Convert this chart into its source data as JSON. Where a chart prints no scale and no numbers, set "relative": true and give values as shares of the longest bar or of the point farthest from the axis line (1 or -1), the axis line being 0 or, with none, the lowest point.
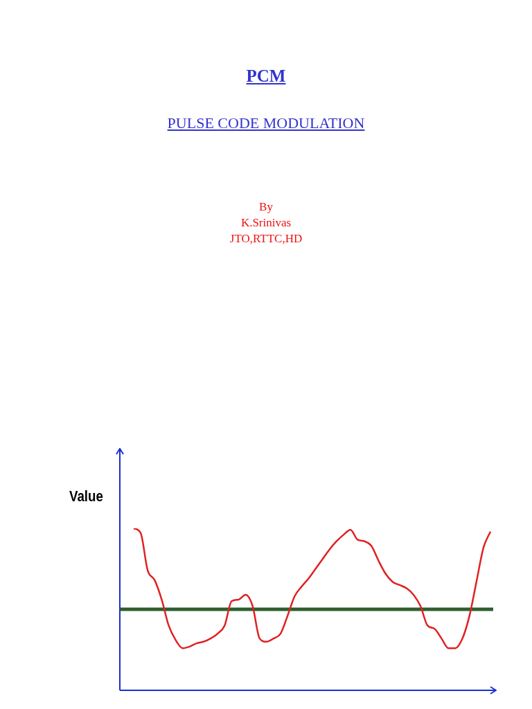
{
  "chart_data": {
    "type": "line",
    "title": "PCM",
    "subtitle": "PULSE CODE MODULATION",
    "ylabel": "Value",
    "annotations": [
      "By",
      "K.Srinivas",
      "JTO,RTTC,HD"
    ],
    "categories": [
      null,
      null,
      null,
      null,
      null,
      null,
      null,
      null,
      null,
      null,
      null,
      null,
      null,
      null,
      null,
      null,
      null,
      null,
      null,
      null,
      null,
      null,
      null,
      null,
      null,
      null,
      null,
      null,
      null,
      null,
      null,
      null,
      null,
      null,
      null,
      null,
      null,
      null,
      null,
      null,
      null,
      null,
      null,
      null,
      null,
      null,
      null,
      null,
      null,
      null,
      null,
      null
    ],
    "relative": true,
    "legend": false,
    "marker": "none",
    "line_style": "solid",
    "series": [
      {
        "color": "#e02020",
        "values": [
          1.0,
          0.97,
          0.74,
          0.68,
          0.56,
          0.4,
          0.31,
          0.26,
          0.27,
          0.29,
          0.3,
          0.32,
          0.35,
          0.4,
          0.55,
          0.56,
          0.59,
          0.52,
          0.32,
          0.3,
          0.32,
          0.35,
          0.46,
          0.58,
          0.64,
          0.69,
          0.75,
          0.81,
          0.87,
          0.92,
          0.96,
          0.99,
          0.93,
          0.92,
          0.89,
          0.8,
          0.72,
          0.67,
          0.65,
          0.63,
          0.59,
          0.52,
          0.4,
          0.38,
          0.32,
          0.26,
          0.26,
          0.32,
          0.46,
          0.67,
          0.88,
          0.98
        ]
      }
    ],
    "ref_lines": [
      {
        "axis": "y",
        "value": 0.5,
        "color": "#2e5e2e"
      }
    ]
  }
}
